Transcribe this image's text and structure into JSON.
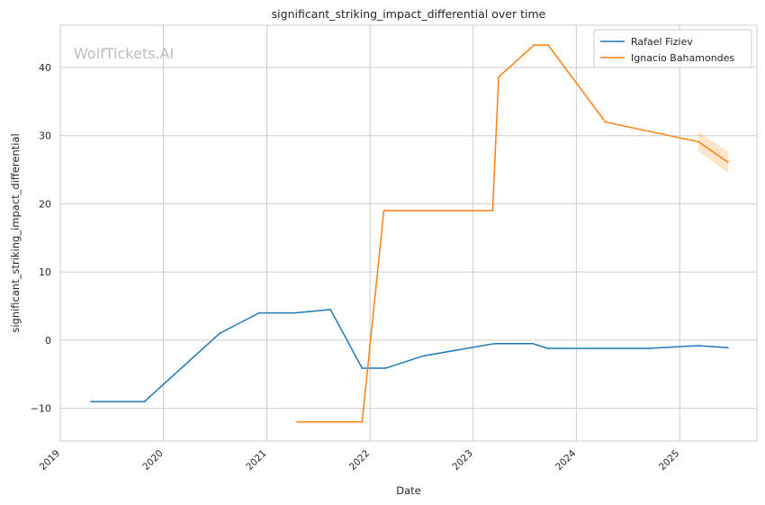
{
  "chart_data": {
    "type": "line",
    "title": "significant_striking_impact_differential over time",
    "xlabel": "Date",
    "ylabel": "significant_striking_impact_differential",
    "watermark": "WolfTickets.AI",
    "x_ticks": [
      "2019",
      "2020",
      "2021",
      "2022",
      "2023",
      "2024",
      "2025"
    ],
    "y_ticks": [
      "−10",
      "0",
      "10",
      "20",
      "30",
      "40"
    ],
    "y_tick_values": [
      -10,
      0,
      10,
      20,
      30,
      40
    ],
    "xlim": [
      "2019-01-01",
      "2025-10-01"
    ],
    "ylim": [
      -14.8,
      46.2
    ],
    "grid": true,
    "legend_position": "top-right",
    "series": [
      {
        "name": "Rafael Fiziev",
        "color": "#1f77b4",
        "points": [
          {
            "x": "2019-04-20",
            "y": -9.0
          },
          {
            "x": "2019-10-26",
            "y": -9.0
          },
          {
            "x": "2020-07-18",
            "y": 1.0
          },
          {
            "x": "2020-12-05",
            "y": 4.0
          },
          {
            "x": "2021-04-10",
            "y": 4.0
          },
          {
            "x": "2021-08-14",
            "y": 4.5
          },
          {
            "x": "2021-12-04",
            "y": -4.1
          },
          {
            "x": "2022-02-26",
            "y": -4.1
          },
          {
            "x": "2022-07-09",
            "y": -2.3
          },
          {
            "x": "2023-03-18",
            "y": -0.5
          },
          {
            "x": "2023-07-29",
            "y": -0.5
          },
          {
            "x": "2023-09-23",
            "y": -1.2
          },
          {
            "x": "2024-09-14",
            "y": -1.2
          },
          {
            "x": "2025-03-08",
            "y": -0.8
          },
          {
            "x": "2025-06-21",
            "y": -1.1
          }
        ]
      },
      {
        "name": "Ignacio Bahamondes",
        "color": "#ff7f0e",
        "points": [
          {
            "x": "2021-04-17",
            "y": -12.0
          },
          {
            "x": "2021-12-04",
            "y": -12.0
          },
          {
            "x": "2022-02-19",
            "y": 19.0
          },
          {
            "x": "2023-03-11",
            "y": 19.0
          },
          {
            "x": "2023-04-01",
            "y": 38.6
          },
          {
            "x": "2023-08-05",
            "y": 43.3
          },
          {
            "x": "2023-09-23",
            "y": 43.3
          },
          {
            "x": "2024-04-13",
            "y": 32.0
          },
          {
            "x": "2025-03-08",
            "y": 29.1
          },
          {
            "x": "2025-06-21",
            "y": 26.1
          }
        ],
        "band": [
          {
            "x": "2025-03-08",
            "low": 27.7,
            "high": 30.5
          },
          {
            "x": "2025-06-21",
            "low": 24.5,
            "high": 27.7
          }
        ]
      }
    ]
  }
}
